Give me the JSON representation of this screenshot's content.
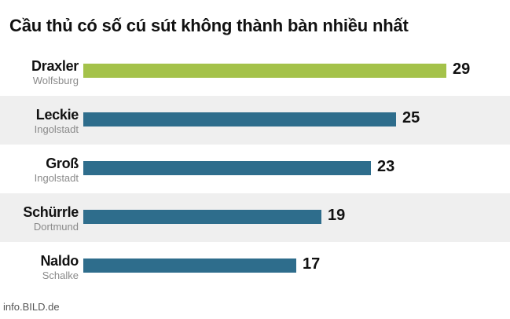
{
  "chart_data": {
    "type": "bar",
    "orientation": "horizontal",
    "title": "Cầu thủ có số cú sút không thành bàn nhiều nhất",
    "categories": [
      "Draxler",
      "Leckie",
      "Groß",
      "Schürrle",
      "Naldo"
    ],
    "subcategories": [
      "Wolfsburg",
      "Ingolstadt",
      "Ingolstadt",
      "Dortmund",
      "Schalke"
    ],
    "values": [
      29,
      25,
      23,
      19,
      17
    ],
    "value_labels": [
      "29",
      "25",
      "23",
      "19",
      "17"
    ],
    "xlim": [
      0,
      29
    ],
    "highlight_color": "#a4c24a",
    "bar_color": "#2e6d8c",
    "grid": false,
    "legend": "none"
  },
  "source": "info.BILD.de"
}
